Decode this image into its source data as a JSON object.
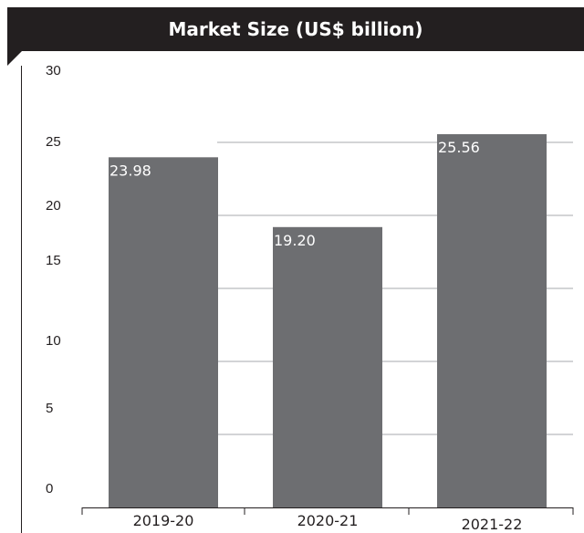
{
  "chart_data": {
    "type": "bar",
    "title": "Market Size (US$ billion)",
    "categories": [
      "2019-20",
      "2020-21",
      "2021-22"
    ],
    "values": [
      23.98,
      19.2,
      25.56
    ],
    "data_labels": [
      "23.98",
      "19.20",
      "25.56"
    ],
    "y_ticks": [
      "0",
      "5",
      "10",
      "15",
      "20",
      "25",
      "30"
    ],
    "ylim": [
      0,
      30
    ],
    "grid": true,
    "bar_color": "#6d6e71",
    "title_bar_color": "#231f20",
    "grid_color": "#a7a9ac"
  }
}
